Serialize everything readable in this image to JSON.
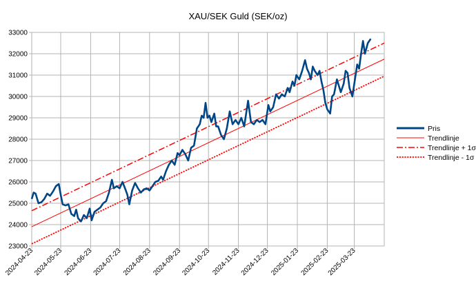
{
  "chart_data": {
    "type": "line",
    "title": "XAU/SEK Guld (SEK/oz)",
    "xlabel": "",
    "ylabel": "",
    "x_range": [
      "2024-04-23",
      "2025-04-23"
    ],
    "ylim": [
      23000,
      33000
    ],
    "y_ticks": [
      23000,
      24000,
      25000,
      26000,
      27000,
      28000,
      29000,
      30000,
      31000,
      32000,
      33000
    ],
    "x_ticks": [
      "2024-04-23",
      "2024-05-23",
      "2024-06-23",
      "2024-07-23",
      "2024-08-23",
      "2024-09-23",
      "2024-10-23",
      "2024-11-23",
      "2024-12-23",
      "2025-01-23",
      "2025-02-23",
      "2025-03-23"
    ],
    "grid": true,
    "legend_position": "right",
    "series": [
      {
        "name": "Pris",
        "style": "solid-thick",
        "color": "#004586",
        "points": [
          [
            "2024-04-23",
            25200
          ],
          [
            "2024-04-25",
            25500
          ],
          [
            "2024-04-27",
            25450
          ],
          [
            "2024-04-30",
            25000
          ],
          [
            "2024-05-03",
            25050
          ],
          [
            "2024-05-06",
            25200
          ],
          [
            "2024-05-09",
            25450
          ],
          [
            "2024-05-12",
            25350
          ],
          [
            "2024-05-15",
            25550
          ],
          [
            "2024-05-18",
            25800
          ],
          [
            "2024-05-21",
            25900
          ],
          [
            "2024-05-23",
            25400
          ],
          [
            "2024-05-25",
            24950
          ],
          [
            "2024-05-28",
            24900
          ],
          [
            "2024-05-31",
            24950
          ],
          [
            "2024-06-03",
            24500
          ],
          [
            "2024-06-06",
            24400
          ],
          [
            "2024-06-08",
            24700
          ],
          [
            "2024-06-10",
            24300
          ],
          [
            "2024-06-13",
            24150
          ],
          [
            "2024-06-16",
            24450
          ],
          [
            "2024-06-19",
            24300
          ],
          [
            "2024-06-22",
            24750
          ],
          [
            "2024-06-24",
            24200
          ],
          [
            "2024-06-27",
            24600
          ],
          [
            "2024-06-30",
            24700
          ],
          [
            "2024-07-03",
            24800
          ],
          [
            "2024-07-06",
            25000
          ],
          [
            "2024-07-09",
            25100
          ],
          [
            "2024-07-12",
            25500
          ],
          [
            "2024-07-15",
            26100
          ],
          [
            "2024-07-17",
            25700
          ],
          [
            "2024-07-20",
            25800
          ],
          [
            "2024-07-23",
            25700
          ],
          [
            "2024-07-26",
            26000
          ],
          [
            "2024-07-29",
            25650
          ],
          [
            "2024-07-31",
            25400
          ],
          [
            "2024-08-02",
            24950
          ],
          [
            "2024-08-05",
            25600
          ],
          [
            "2024-08-08",
            25950
          ],
          [
            "2024-08-11",
            25700
          ],
          [
            "2024-08-14",
            25500
          ],
          [
            "2024-08-17",
            25650
          ],
          [
            "2024-08-20",
            25700
          ],
          [
            "2024-08-23",
            25600
          ],
          [
            "2024-08-26",
            25800
          ],
          [
            "2024-08-29",
            26000
          ],
          [
            "2024-09-01",
            26050
          ],
          [
            "2024-09-04",
            26250
          ],
          [
            "2024-09-06",
            26100
          ],
          [
            "2024-09-09",
            26500
          ],
          [
            "2024-09-12",
            26800
          ],
          [
            "2024-09-15",
            27000
          ],
          [
            "2024-09-18",
            26800
          ],
          [
            "2024-09-21",
            27350
          ],
          [
            "2024-09-23",
            27250
          ],
          [
            "2024-09-26",
            27500
          ],
          [
            "2024-09-29",
            27300
          ],
          [
            "2024-10-02",
            27000
          ],
          [
            "2024-10-05",
            27600
          ],
          [
            "2024-10-08",
            27700
          ],
          [
            "2024-10-11",
            28500
          ],
          [
            "2024-10-14",
            28700
          ],
          [
            "2024-10-16",
            29100
          ],
          [
            "2024-10-18",
            29000
          ],
          [
            "2024-10-20",
            29700
          ],
          [
            "2024-10-22",
            29000
          ],
          [
            "2024-10-24",
            29100
          ],
          [
            "2024-10-26",
            28800
          ],
          [
            "2024-10-29",
            29200
          ],
          [
            "2024-10-31",
            28600
          ],
          [
            "2024-11-02",
            28600
          ],
          [
            "2024-11-05",
            28200
          ],
          [
            "2024-11-08",
            28000
          ],
          [
            "2024-11-11",
            28500
          ],
          [
            "2024-11-14",
            29300
          ],
          [
            "2024-11-17",
            28700
          ],
          [
            "2024-11-20",
            28900
          ],
          [
            "2024-11-23",
            28700
          ],
          [
            "2024-11-26",
            29000
          ],
          [
            "2024-11-29",
            28600
          ],
          [
            "2024-12-01",
            29200
          ],
          [
            "2024-12-03",
            29800
          ],
          [
            "2024-12-06",
            28800
          ],
          [
            "2024-12-09",
            28700
          ],
          [
            "2024-12-12",
            28900
          ],
          [
            "2024-12-15",
            28800
          ],
          [
            "2024-12-18",
            28900
          ],
          [
            "2024-12-21",
            28700
          ],
          [
            "2024-12-24",
            29600
          ],
          [
            "2024-12-26",
            29300
          ],
          [
            "2024-12-29",
            29500
          ],
          [
            "2025-01-01",
            30100
          ],
          [
            "2025-01-04",
            29900
          ],
          [
            "2025-01-07",
            30100
          ],
          [
            "2025-01-10",
            30000
          ],
          [
            "2025-01-13",
            30400
          ],
          [
            "2025-01-15",
            30200
          ],
          [
            "2025-01-18",
            30700
          ],
          [
            "2025-01-20",
            30500
          ],
          [
            "2025-01-22",
            31000
          ],
          [
            "2025-01-25",
            30800
          ],
          [
            "2025-01-28",
            31200
          ],
          [
            "2025-01-31",
            31700
          ],
          [
            "2025-02-02",
            31300
          ],
          [
            "2025-02-04",
            31100
          ],
          [
            "2025-02-06",
            30800
          ],
          [
            "2025-02-08",
            31400
          ],
          [
            "2025-02-10",
            31200
          ],
          [
            "2025-02-13",
            31000
          ],
          [
            "2025-02-15",
            31200
          ],
          [
            "2025-02-17",
            30700
          ],
          [
            "2025-02-19",
            30300
          ],
          [
            "2025-02-21",
            29700
          ],
          [
            "2025-02-23",
            29400
          ],
          [
            "2025-02-26",
            29200
          ],
          [
            "2025-02-28",
            30000
          ],
          [
            "2025-03-02",
            30100
          ],
          [
            "2025-03-05",
            30800
          ],
          [
            "2025-03-07",
            30500
          ],
          [
            "2025-03-09",
            30200
          ],
          [
            "2025-03-12",
            30600
          ],
          [
            "2025-03-14",
            31200
          ],
          [
            "2025-03-16",
            31100
          ],
          [
            "2025-03-18",
            30400
          ],
          [
            "2025-03-21",
            30000
          ],
          [
            "2025-03-24",
            30900
          ],
          [
            "2025-03-26",
            31500
          ],
          [
            "2025-03-28",
            31300
          ],
          [
            "2025-03-30",
            32000
          ],
          [
            "2025-04-01",
            32600
          ],
          [
            "2025-04-03",
            32000
          ],
          [
            "2025-04-06",
            32500
          ],
          [
            "2025-04-09",
            32700
          ]
        ]
      },
      {
        "name": "Trendlinje",
        "style": "solid-thin",
        "color": "#ff0000",
        "points": [
          [
            "2024-04-23",
            23900
          ],
          [
            "2025-04-23",
            31750
          ]
        ]
      },
      {
        "name": "Trendlinje + 1σ",
        "style": "dash-dot",
        "color": "#ff0000",
        "points": [
          [
            "2024-04-23",
            24650
          ],
          [
            "2025-04-23",
            32500
          ]
        ]
      },
      {
        "name": "Trendlinje - 1σ",
        "style": "dotted",
        "color": "#ff0000",
        "points": [
          [
            "2024-04-23",
            23100
          ],
          [
            "2025-04-23",
            30950
          ]
        ]
      }
    ]
  }
}
